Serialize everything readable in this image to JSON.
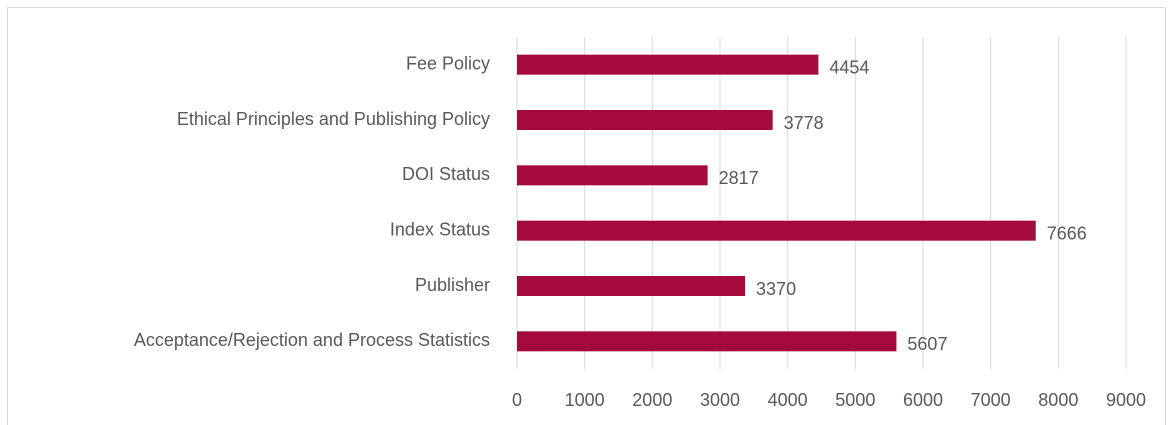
{
  "chart_data": {
    "type": "barh",
    "categories": [
      "Fee Policy",
      "Ethical Principles and Publishing Policy",
      "DOI Status",
      "Index Status",
      "Publisher",
      "Acceptance/Rejection and Process Statistics"
    ],
    "values": [
      4454,
      3778,
      2817,
      7666,
      3370,
      5607
    ],
    "color": "#a50a3c",
    "xlim": [
      0,
      9000
    ],
    "xticks": [
      0,
      1000,
      2000,
      3000,
      4000,
      5000,
      6000,
      7000,
      8000,
      9000
    ],
    "grid": true
  }
}
